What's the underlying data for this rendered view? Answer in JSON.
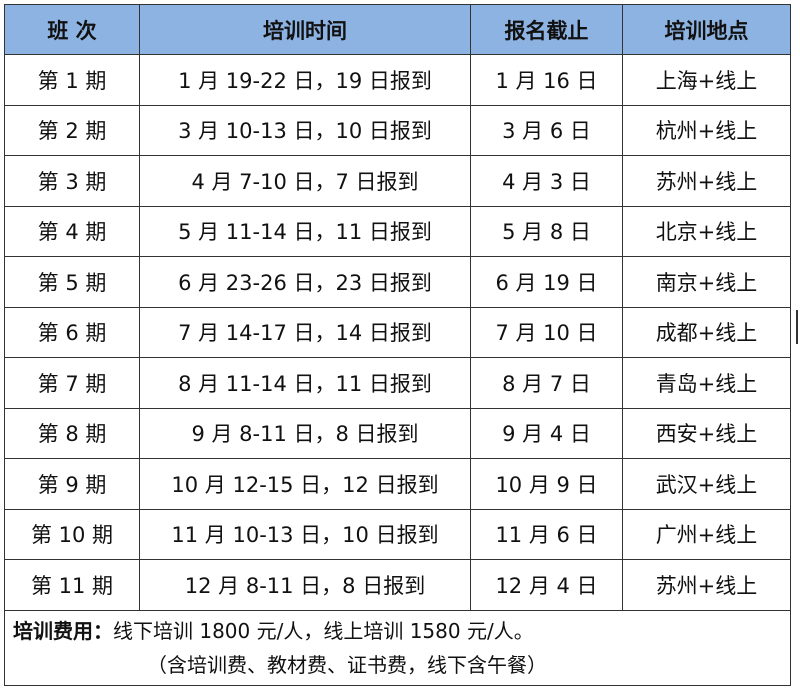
{
  "table": {
    "headers": [
      "班 次",
      "培训时间",
      "报名截止",
      "培训地点"
    ],
    "rows": [
      [
        "第 1 期",
        "1 月 19-22 日，19 日报到",
        "1 月 16 日",
        "上海+线上"
      ],
      [
        "第 2 期",
        "3 月 10-13 日，10 日报到",
        "3 月 6 日",
        "杭州+线上"
      ],
      [
        "第 3 期",
        "4 月 7-10 日，7 日报到",
        "4 月 3 日",
        "苏州+线上"
      ],
      [
        "第 4 期",
        "5 月 11-14 日，11 日报到",
        "5 月 8 日",
        "北京+线上"
      ],
      [
        "第 5 期",
        "6 月 23-26 日，23 日报到",
        "6 月 19 日",
        "南京+线上"
      ],
      [
        "第 6 期",
        "7 月 14-17 日，14 日报到",
        "7 月 10 日",
        "成都+线上"
      ],
      [
        "第 7 期",
        "8 月 11-14 日，11 日报到",
        "8 月 7 日",
        "青岛+线上"
      ],
      [
        "第 8 期",
        "9 月 8-11 日，8 日报到",
        "9 月 4 日",
        "西安+线上"
      ],
      [
        "第 9 期",
        "10 月 12-15 日，12 日报到",
        "10 月 9 日",
        "武汉+线上"
      ],
      [
        "第 10 期",
        "11 月 10-13 日，10 日报到",
        "11 月 6 日",
        "广州+线上"
      ],
      [
        "第 11 期",
        "12 月 8-11 日，8 日报到",
        "12 月 4 日",
        "苏州+线上"
      ]
    ],
    "footer": {
      "fee_label": "培训费用：",
      "fee_text": "线下培训 1800 元/人，线上培训 1580 元/人。",
      "note": "（含培训费、教材费、证书费，线下含午餐）"
    }
  },
  "colors": {
    "header_bg": "#8db3e2",
    "border": "#333333"
  }
}
